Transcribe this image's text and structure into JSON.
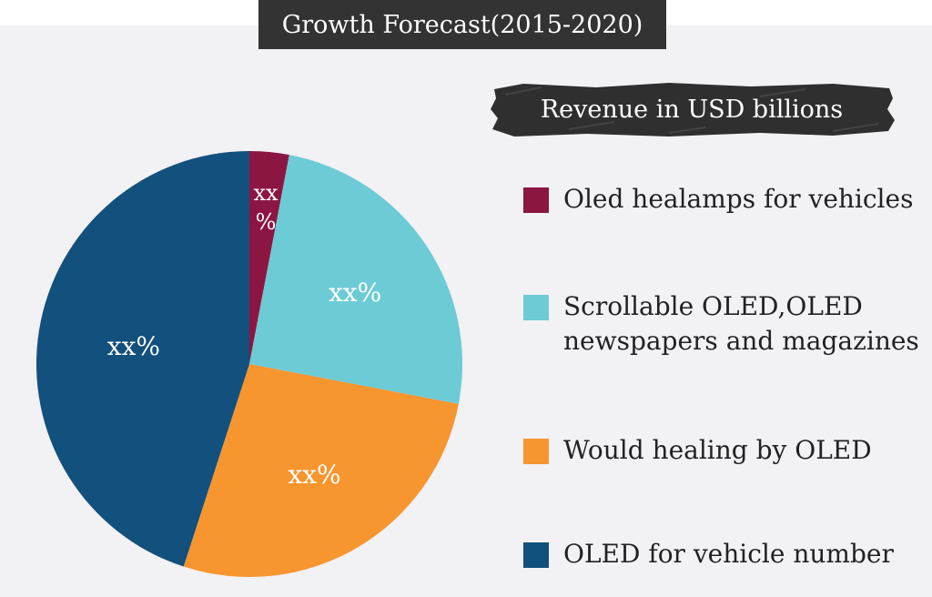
{
  "header": {
    "title": "Growth Forecast(2015-2020)"
  },
  "legend": {
    "title": "Revenue in USD billions"
  },
  "chart_data": {
    "type": "pie",
    "title": "Growth Forecast(2015-2020)",
    "slices": [
      {
        "name": "Oled healamps for vehicles",
        "value": 3,
        "label_lines": [
          "xx",
          "%"
        ],
        "color": "#8c1642"
      },
      {
        "name": "Scrollable OLED,OLED newspapers and magazines",
        "value": 25,
        "label_lines": [
          "xx%"
        ],
        "color": "#6ccbd5"
      },
      {
        "name": "Would healing by OLED",
        "value": 27,
        "label_lines": [
          "xx%"
        ],
        "color": "#f7952f"
      },
      {
        "name": "OLED for vehicle number",
        "value": 45,
        "label_lines": [
          "xx%"
        ],
        "color": "#12507d"
      }
    ]
  }
}
